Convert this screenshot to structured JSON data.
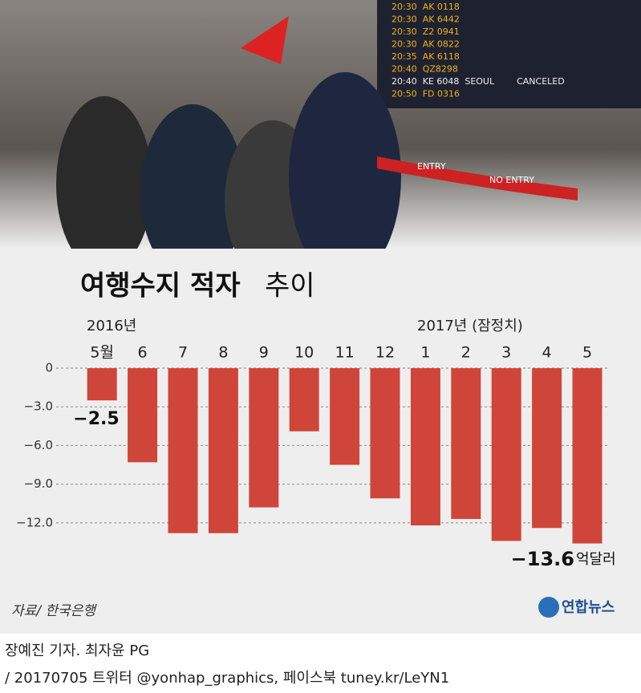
{
  "chart_data": {
    "type": "bar",
    "title": "여행수지 적자",
    "subtitle": "추이",
    "period_start": "2016년",
    "period_end": "2017년 (잠정치)",
    "categories": [
      "5월",
      "6",
      "7",
      "8",
      "9",
      "10",
      "11",
      "12",
      "1",
      "2",
      "3",
      "4",
      "5"
    ],
    "values": [
      -2.5,
      -7.3,
      -12.8,
      -12.8,
      -10.8,
      -4.9,
      -7.5,
      -10.1,
      -12.2,
      -11.7,
      -13.4,
      -12.4,
      -13.6
    ],
    "value_labels": [
      "−2.5",
      null,
      null,
      null,
      null,
      null,
      null,
      null,
      null,
      null,
      null,
      null,
      "−13.6"
    ],
    "unit": "억달러",
    "color": "#d0453a",
    "ylim": [
      -14,
      0
    ],
    "yticks": [
      0,
      {
        "value": -3,
        "label": "−3.0"
      },
      {
        "value": -6,
        "label": "−6.0"
      },
      {
        "value": -9,
        "label": "−9.0"
      },
      {
        "value": -12,
        "label": "−12.0"
      }
    ],
    "grid": true,
    "source": "자료/ 한국은행",
    "logo": "연합뉴스"
  },
  "photo": {
    "board": [
      "20:30  AK 0118",
      "20:30  AK 6442",
      "20:30  Z2 0941",
      "20:30  AK 0822",
      "20:35  AK 6118",
      "20:40  QZ8298",
      "20:40  KE 6048  SEOUL        CANCELED",
      "20:50  FD 0316"
    ],
    "signs": [
      "ENTRY",
      "NO ENTRY"
    ]
  },
  "footer": {
    "line1": "장예진 기자. 최자윤 PG",
    "line2": "/ 20170705 트위터 @yonhap_graphics, 페이스북 tuney.kr/LeYN1"
  }
}
